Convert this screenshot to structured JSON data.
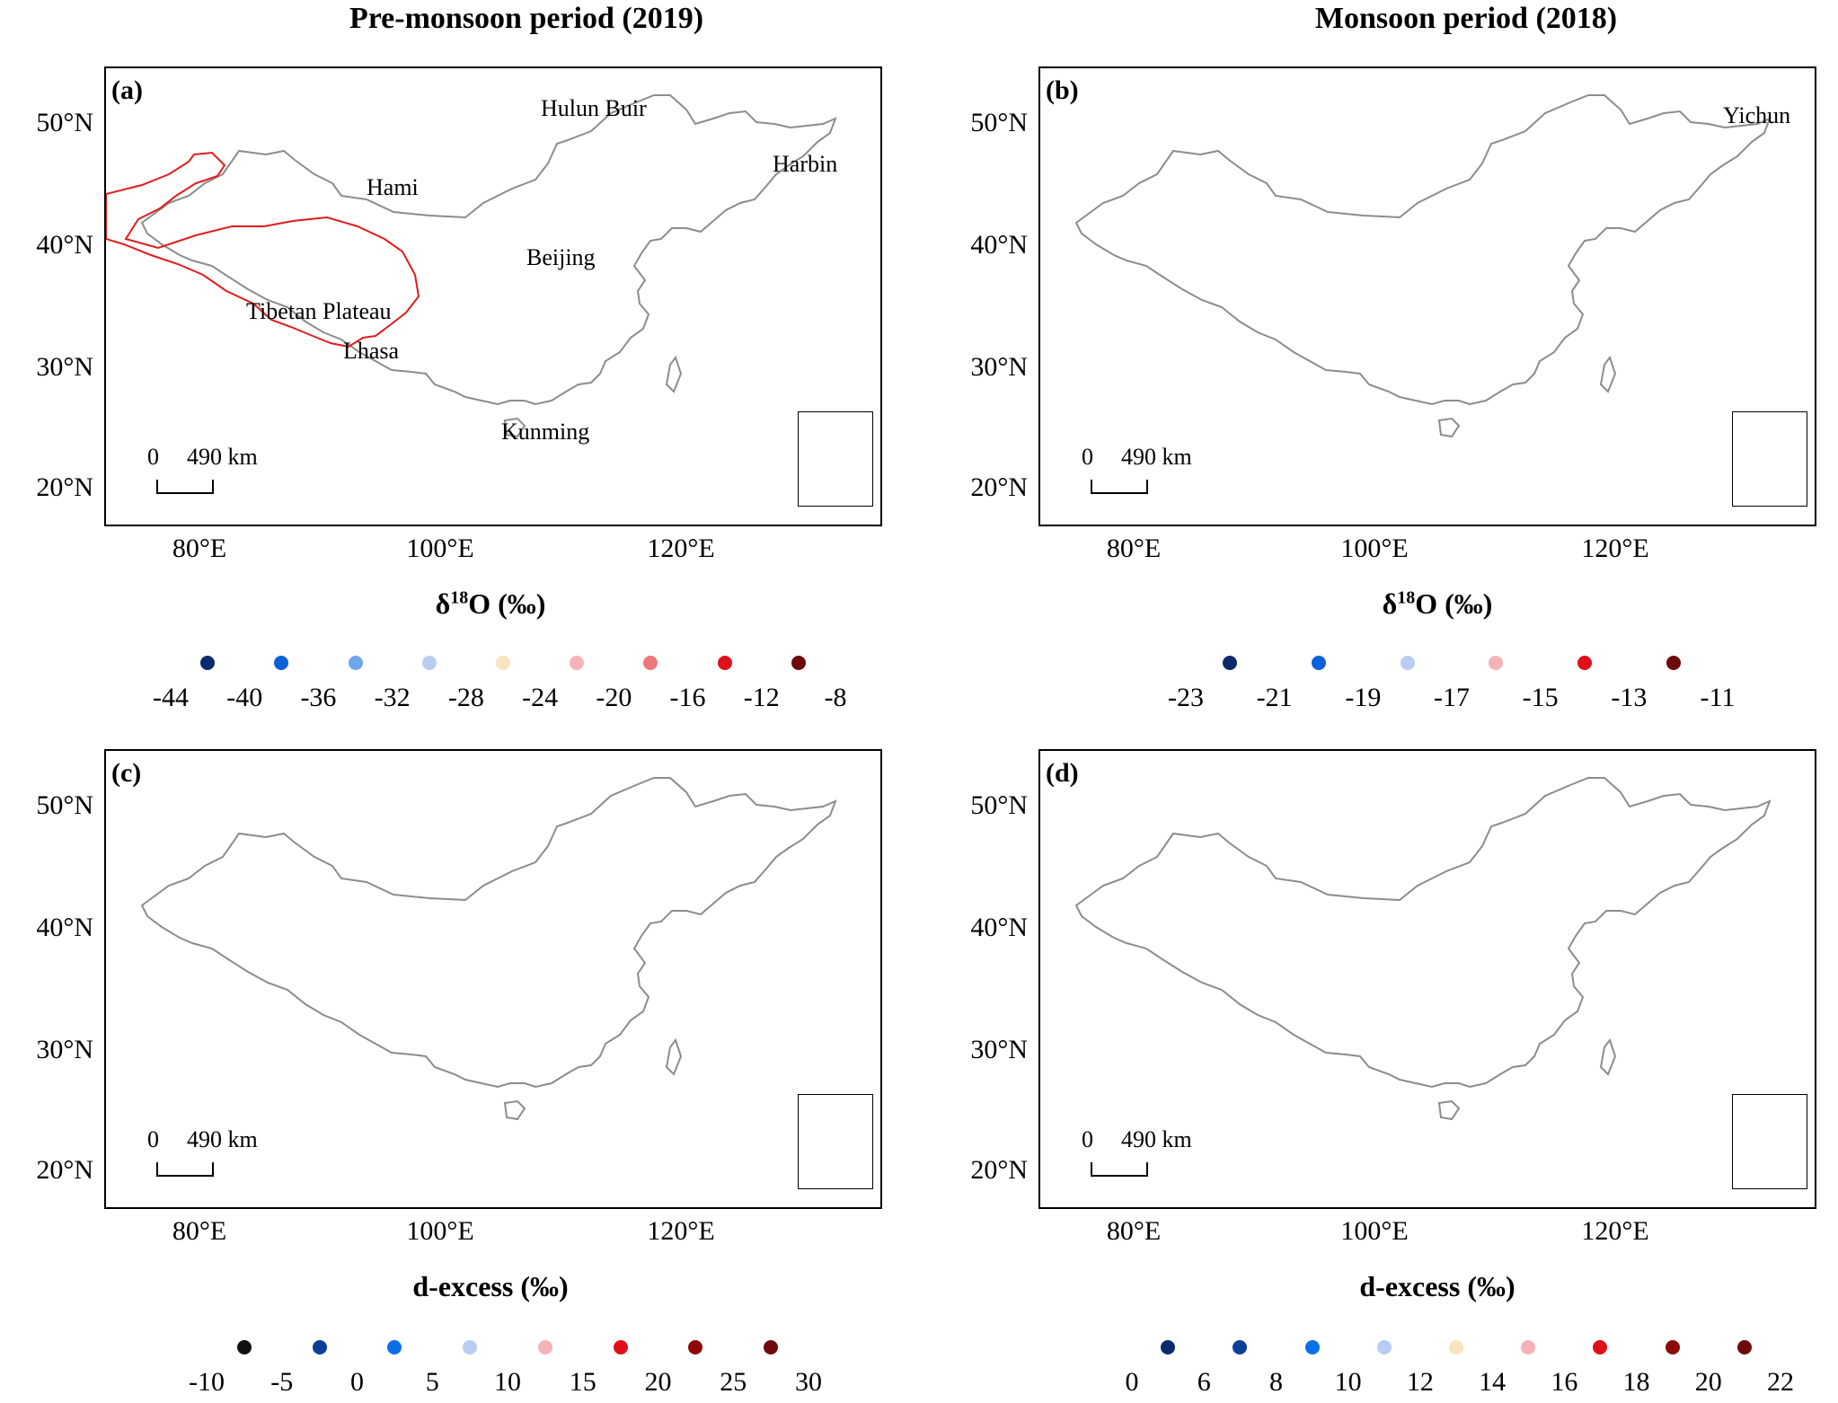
{
  "columns": {
    "left_title": "Pre-monsoon period (2019)",
    "right_title": "Monsoon period (2018)"
  },
  "axes": {
    "lat_labels": [
      "50°N",
      "40°N",
      "30°N",
      "20°N"
    ],
    "lon_labels": [
      "80°E",
      "100°E",
      "120°E"
    ]
  },
  "panels": {
    "a": {
      "label": "(a)",
      "places": {
        "hulun": "Hulun Buir",
        "harbin": "Harbin",
        "hami": "Hami",
        "beijing": "Beijing",
        "tibet": "Tibetan Plateau",
        "lhasa": "Lhasa",
        "kunming": "Kunming"
      },
      "scale": {
        "zero": "0",
        "dist": "490  km"
      }
    },
    "b": {
      "label": "(b)",
      "places": {
        "yichun": "Yichun"
      },
      "scale": {
        "zero": "0",
        "dist": "490  km"
      }
    },
    "c": {
      "label": "(c)",
      "scale": {
        "zero": "0",
        "dist": "490  km"
      }
    },
    "d": {
      "label": "(d)",
      "scale": {
        "zero": "0",
        "dist": "490  km"
      }
    }
  },
  "legends": {
    "a": {
      "title": "δ18O (‰)",
      "ticks": [
        "-44",
        "-40",
        "-36",
        "-32",
        "-28",
        "-24",
        "-20",
        "-16",
        "-12",
        "-8"
      ],
      "colors": [
        "#0b2a6e",
        "#0b5fd8",
        "#6fa6ea",
        "#b9cdf2",
        "#fbe3bd",
        "#f5b3b8",
        "#ef7878",
        "#e0101a",
        "#6e0a0a"
      ]
    },
    "b": {
      "title": "δ18O (‰)",
      "ticks": [
        "-23",
        "-21",
        "-19",
        "-17",
        "-15",
        "-13",
        "-11"
      ],
      "colors": [
        "#0b2a6e",
        "#0b5fd8",
        "#b9cdf2",
        "#f5b3b8",
        "#e0101a",
        "#6e0a0a"
      ]
    },
    "c": {
      "title": "d-excess (‰)",
      "ticks": [
        "-10",
        "-5",
        "0",
        "5",
        "10",
        "15",
        "20",
        "25",
        "30"
      ],
      "colors": [
        "#111111",
        "#0b3f98",
        "#0b6fe8",
        "#b9cdf2",
        "#f5b3b8",
        "#e0101a",
        "#8e0a0a",
        "#6e0a0a"
      ]
    },
    "d": {
      "title": "d-excess (‰)",
      "ticks": [
        "0",
        "6",
        "8",
        "10",
        "12",
        "14",
        "16",
        "18",
        "20",
        "22"
      ],
      "colors": [
        "#0b2a6e",
        "#0b3f98",
        "#0b6fe8",
        "#b9cdf2",
        "#fbe3bd",
        "#f5b3b8",
        "#e0101a",
        "#8e0a0a",
        "#6e0a0a"
      ]
    }
  }
}
